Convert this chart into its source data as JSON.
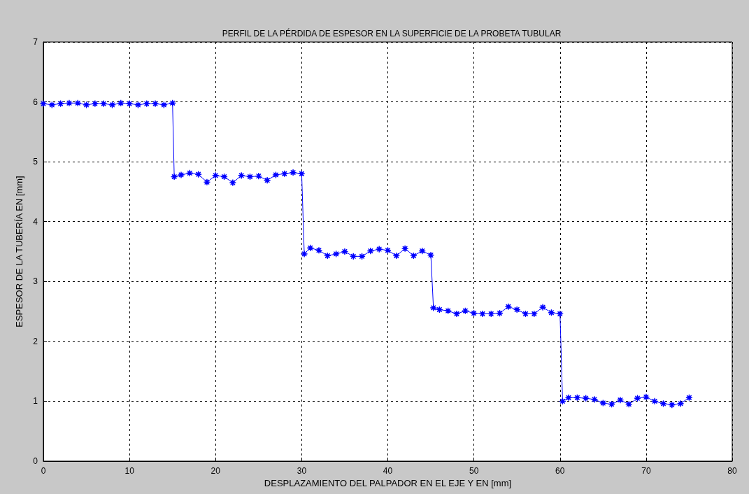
{
  "chart_data": {
    "type": "line",
    "title": "PERFIL DE LA PÉRDIDA DE ESPESOR EN LA SUPERFICIE DE LA PROBETA TUBULAR",
    "xlabel": "DESPLAZAMIENTO DEL PALPADOR EN EL EJE Y EN [mm]",
    "ylabel": "ESPESOR DE LA TUBERÍA EN [mm]",
    "x": [
      0,
      1,
      2,
      3,
      4,
      5,
      6,
      7,
      8,
      9,
      10,
      11,
      12,
      13,
      14,
      15,
      15.2,
      16,
      17,
      18,
      19,
      20,
      21,
      22,
      23,
      24,
      25,
      26,
      27,
      28,
      29,
      30,
      30.3,
      31,
      32,
      33,
      34,
      35,
      36,
      37,
      38,
      39,
      40,
      41,
      42,
      43,
      44,
      45,
      45.3,
      46,
      47,
      48,
      49,
      50,
      51,
      52,
      53,
      54,
      55,
      56,
      57,
      58,
      59,
      60,
      60.3,
      61,
      62,
      63,
      64,
      65,
      66,
      67,
      68,
      69,
      70,
      71,
      72,
      73,
      74,
      75
    ],
    "series": [
      {
        "color": "#0000ff",
        "values": [
          5.97,
          5.95,
          5.97,
          5.98,
          5.98,
          5.95,
          5.97,
          5.97,
          5.95,
          5.98,
          5.97,
          5.95,
          5.97,
          5.97,
          5.95,
          5.98,
          4.75,
          4.78,
          4.81,
          4.79,
          4.66,
          4.77,
          4.75,
          4.65,
          4.77,
          4.75,
          4.76,
          4.69,
          4.78,
          4.8,
          4.82,
          4.8,
          3.46,
          3.56,
          3.52,
          3.43,
          3.46,
          3.5,
          3.42,
          3.42,
          3.51,
          3.54,
          3.52,
          3.43,
          3.55,
          3.43,
          3.51,
          3.44,
          2.56,
          2.53,
          2.51,
          2.46,
          2.51,
          2.47,
          2.46,
          2.46,
          2.47,
          2.58,
          2.53,
          2.46,
          2.46,
          2.57,
          2.48,
          2.46,
          1.0,
          1.06,
          1.06,
          1.05,
          1.03,
          0.97,
          0.95,
          1.02,
          0.95,
          1.05,
          1.07,
          1.0,
          0.96,
          0.94,
          0.96,
          1.06
        ]
      }
    ],
    "xlim": [
      0,
      80
    ],
    "xticks": [
      0,
      10,
      20,
      30,
      40,
      50,
      60,
      70,
      80
    ],
    "ylim": [
      0,
      7
    ],
    "yticks": [
      0,
      1,
      2,
      3,
      4,
      5,
      6,
      7
    ],
    "grid": true,
    "marker": "star",
    "line_style": "solid"
  }
}
